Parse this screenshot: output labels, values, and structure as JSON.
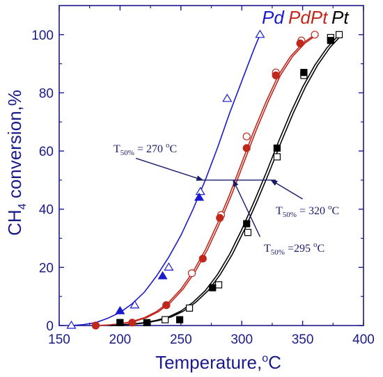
{
  "chart_data": {
    "type": "scatter",
    "xlabel": "Temperature,°C",
    "ylabel": "CH4 conversion,%",
    "xlim": [
      150,
      400
    ],
    "ylim": [
      0,
      110
    ],
    "xticks": [
      150,
      200,
      250,
      300,
      350,
      400
    ],
    "yticks": [
      0,
      20,
      40,
      60,
      80,
      100
    ],
    "grid": false,
    "legend": [
      {
        "label": "Pd",
        "color": "#1a1acc"
      },
      {
        "label": "PdPt",
        "color": "#c0281e"
      },
      {
        "label": "Pt",
        "color": "#000000"
      }
    ],
    "series": [
      {
        "name": "Pd",
        "color": "#1a1acc",
        "points_open": {
          "x": [
            160,
            212,
            240,
            266,
            288,
            315
          ],
          "y": [
            0,
            7,
            20,
            46,
            78,
            100
          ],
          "marker": "triangle"
        },
        "points_filled": {
          "x": [
            200,
            235,
            265
          ],
          "y": [
            5,
            17,
            44
          ],
          "marker": "triangle"
        },
        "fit_x": [
          160,
          170,
          180,
          190,
          200,
          210,
          220,
          230,
          240,
          250,
          260,
          270,
          280,
          290,
          300,
          310,
          315
        ],
        "fit_y": [
          0,
          0.3,
          1,
          2.5,
          4.5,
          7.5,
          11.5,
          17,
          23.5,
          31,
          40,
          50,
          61,
          73,
          84,
          95,
          100
        ]
      },
      {
        "name": "PdPt",
        "color": "#c0281e",
        "points_open": {
          "x": [
            180,
            238,
            259,
            283,
            304,
            328,
            349,
            360
          ],
          "y": [
            0,
            7,
            18,
            38,
            65,
            87,
            98,
            100
          ],
          "marker": "circle"
        },
        "points_filled": {
          "x": [
            180,
            210,
            238,
            268,
            282,
            304,
            328,
            348
          ],
          "y": [
            0,
            1,
            7,
            23,
            37,
            61,
            86,
            97
          ],
          "marker": "circle"
        },
        "fit_x": [
          180,
          190,
          200,
          210,
          220,
          230,
          240,
          250,
          260,
          270,
          280,
          290,
          300,
          310,
          320,
          330,
          340,
          350,
          360
        ],
        "fit_y": [
          0,
          0.2,
          0.6,
          1.4,
          2.7,
          4.8,
          8,
          12.5,
          18.5,
          26,
          35,
          45,
          56,
          67,
          77,
          86,
          92.5,
          97,
          100
        ]
      },
      {
        "name": "Pt",
        "color": "#000000",
        "points_open": {
          "x": [
            200,
            237,
            257,
            281,
            305,
            329,
            351,
            373,
            380
          ],
          "y": [
            1,
            2,
            6,
            14,
            32,
            58,
            86,
            99,
            100
          ],
          "marker": "square"
        },
        "points_filled": {
          "x": [
            200,
            222,
            249,
            276,
            304,
            329,
            351,
            373
          ],
          "y": [
            1,
            1,
            2,
            13,
            35,
            61,
            87,
            98
          ],
          "marker": "square"
        },
        "fit_x": [
          190,
          200,
          210,
          220,
          230,
          240,
          250,
          260,
          270,
          280,
          290,
          300,
          310,
          320,
          330,
          340,
          350,
          360,
          370,
          380
        ],
        "fit_y": [
          0,
          0.2,
          0.5,
          1,
          1.8,
          3,
          5,
          8,
          12,
          17.5,
          24.5,
          33,
          42.5,
          52.5,
          63,
          73,
          82,
          89.5,
          95.5,
          100
        ]
      }
    ],
    "annotations": [
      {
        "prefix": "T",
        "sub": "50%",
        "text": " = 270 ",
        "sup": "o",
        "unit": "C"
      },
      {
        "prefix": "T",
        "sub": "50%",
        "text": " = 320 ",
        "sup": "o",
        "unit": "C"
      },
      {
        "prefix": "T",
        "sub": "50%",
        "text": " =295 ",
        "sup": "o",
        "unit": "C"
      }
    ]
  }
}
